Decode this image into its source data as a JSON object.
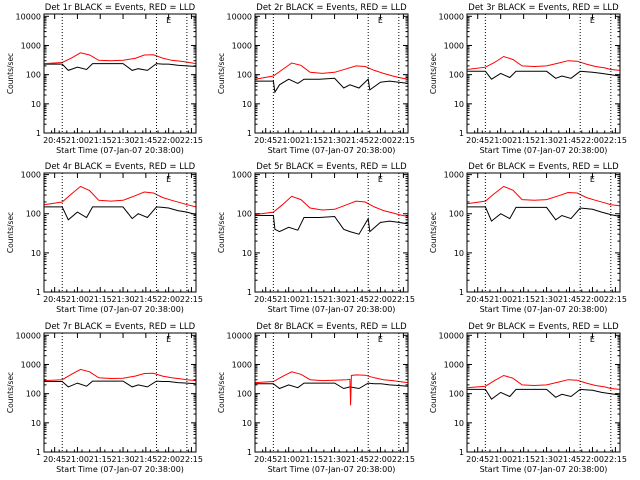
{
  "figure": {
    "background": "#ffffff",
    "series_colors": {
      "Events": "#000000",
      "LLD": "#ff0000"
    },
    "ylabel": "Counts/sec",
    "xlabel": "Start Time (07-Jan-07 20:38:00)",
    "marker_glyph": "E",
    "x_tick_labels": [
      "20:45",
      "21:00",
      "21:15",
      "21:30",
      "21:45",
      "22:00",
      "22:15"
    ],
    "y_tick_labels": [
      "1",
      "10",
      "100",
      "1000",
      "10000"
    ],
    "row_ylim": [
      [
        1,
        12000
      ],
      [
        1,
        1100
      ],
      [
        1,
        12000
      ]
    ]
  },
  "chart_data": [
    {
      "type": "line",
      "title": "Det 1r BLACK = Events, RED = LLD",
      "xlabel": "Start Time (07-Jan-07 20:38:00)",
      "ylabel": "Counts/sec",
      "xlim": [
        "20:38",
        "22:18"
      ],
      "ylim": [
        1,
        12000
      ],
      "yscale": "log",
      "grid": false,
      "vlines": [
        "20:50",
        "21:52",
        "22:12"
      ],
      "series": [
        {
          "name": "Events",
          "x": [
            "20:38",
            "20:50",
            "20:54",
            "21:00",
            "21:06",
            "21:10",
            "21:20",
            "21:30",
            "21:36",
            "21:40",
            "21:46",
            "21:52",
            "21:56",
            "22:00",
            "22:06",
            "22:12",
            "22:18"
          ],
          "values": [
            230,
            230,
            140,
            180,
            150,
            240,
            240,
            240,
            140,
            160,
            140,
            240,
            230,
            230,
            210,
            200,
            190
          ]
        },
        {
          "name": "LLD",
          "x": [
            "20:38",
            "20:50",
            "20:56",
            "21:02",
            "21:08",
            "21:14",
            "21:22",
            "21:30",
            "21:38",
            "21:44",
            "21:50",
            "21:56",
            "22:02",
            "22:08",
            "22:12",
            "22:18"
          ],
          "values": [
            240,
            260,
            370,
            560,
            470,
            310,
            300,
            310,
            360,
            470,
            480,
            370,
            310,
            290,
            270,
            240
          ]
        }
      ]
    },
    {
      "type": "line",
      "title": "Det 2r BLACK = Events, RED = LLD",
      "xlabel": "Start Time (07-Jan-07 20:38:00)",
      "ylabel": "Counts/sec",
      "xlim": [
        "20:38",
        "22:18"
      ],
      "ylim": [
        1,
        12000
      ],
      "yscale": "log",
      "grid": false,
      "vlines": [
        "20:50",
        "21:52",
        "22:12"
      ],
      "series": [
        {
          "name": "Events",
          "x": [
            "20:38",
            "20:50",
            "20:51",
            "20:54",
            "21:00",
            "21:06",
            "21:10",
            "21:20",
            "21:30",
            "21:36",
            "21:40",
            "21:46",
            "21:52",
            "21:53",
            "22:00",
            "22:06",
            "22:12",
            "22:18"
          ],
          "values": [
            60,
            60,
            25,
            45,
            70,
            50,
            70,
            70,
            75,
            35,
            45,
            35,
            70,
            30,
            55,
            60,
            55,
            50
          ]
        },
        {
          "name": "LLD",
          "x": [
            "20:38",
            "20:50",
            "20:56",
            "21:02",
            "21:08",
            "21:14",
            "21:22",
            "21:30",
            "21:38",
            "21:44",
            "21:50",
            "21:56",
            "22:02",
            "22:08",
            "22:12",
            "22:18"
          ],
          "values": [
            70,
            90,
            150,
            250,
            210,
            120,
            110,
            120,
            160,
            200,
            190,
            140,
            110,
            90,
            80,
            70
          ]
        }
      ]
    },
    {
      "type": "line",
      "title": "Det 3r BLACK = Events, RED = LLD",
      "xlabel": "Start Time (07-Jan-07 20:38:00)",
      "ylabel": "Counts/sec",
      "xlim": [
        "20:38",
        "22:18"
      ],
      "ylim": [
        1,
        12000
      ],
      "yscale": "log",
      "grid": false,
      "vlines": [
        "20:50",
        "21:52",
        "22:12"
      ],
      "series": [
        {
          "name": "Events",
          "x": [
            "20:38",
            "20:50",
            "20:54",
            "21:00",
            "21:06",
            "21:10",
            "21:20",
            "21:30",
            "21:36",
            "21:40",
            "21:46",
            "21:52",
            "21:56",
            "22:00",
            "22:06",
            "22:12",
            "22:18"
          ],
          "values": [
            130,
            130,
            70,
            110,
            80,
            130,
            130,
            130,
            75,
            90,
            75,
            130,
            125,
            120,
            110,
            100,
            90
          ]
        },
        {
          "name": "LLD",
          "x": [
            "20:38",
            "20:50",
            "20:56",
            "21:02",
            "21:08",
            "21:14",
            "21:22",
            "21:30",
            "21:38",
            "21:44",
            "21:50",
            "21:56",
            "22:02",
            "22:08",
            "22:12",
            "22:18"
          ],
          "values": [
            150,
            180,
            260,
            420,
            330,
            200,
            190,
            200,
            250,
            300,
            290,
            230,
            190,
            170,
            150,
            140
          ]
        }
      ]
    },
    {
      "type": "line",
      "title": "Det 4r BLACK = Events, RED = LLD",
      "xlabel": "Start Time (07-Jan-07 20:38:00)",
      "ylabel": "Counts/sec",
      "xlim": [
        "20:38",
        "22:18"
      ],
      "ylim": [
        1,
        1100
      ],
      "yscale": "log",
      "grid": false,
      "vlines": [
        "20:50",
        "21:52",
        "22:12"
      ],
      "series": [
        {
          "name": "Events",
          "x": [
            "20:38",
            "20:50",
            "20:54",
            "21:00",
            "21:06",
            "21:10",
            "21:20",
            "21:30",
            "21:36",
            "21:40",
            "21:46",
            "21:52",
            "21:56",
            "22:00",
            "22:06",
            "22:12",
            "22:18"
          ],
          "values": [
            150,
            150,
            70,
            110,
            80,
            150,
            150,
            150,
            75,
            100,
            80,
            150,
            145,
            140,
            120,
            110,
            95
          ]
        },
        {
          "name": "LLD",
          "x": [
            "20:38",
            "20:50",
            "20:56",
            "21:02",
            "21:08",
            "21:14",
            "21:22",
            "21:30",
            "21:38",
            "21:44",
            "21:50",
            "21:56",
            "22:02",
            "22:08",
            "22:12",
            "22:18"
          ],
          "values": [
            170,
            200,
            320,
            500,
            390,
            220,
            210,
            220,
            290,
            360,
            340,
            260,
            220,
            190,
            170,
            150
          ]
        }
      ]
    },
    {
      "type": "line",
      "title": "Det 5r BLACK = Events, RED = LLD",
      "xlabel": "Start Time (07-Jan-07 20:38:00)",
      "ylabel": "Counts/sec",
      "xlim": [
        "20:38",
        "22:18"
      ],
      "ylim": [
        1,
        1100
      ],
      "yscale": "log",
      "grid": false,
      "vlines": [
        "20:50",
        "21:52",
        "22:12"
      ],
      "series": [
        {
          "name": "Events",
          "x": [
            "20:38",
            "20:50",
            "20:51",
            "20:54",
            "21:00",
            "21:06",
            "21:10",
            "21:20",
            "21:30",
            "21:36",
            "21:40",
            "21:46",
            "21:52",
            "21:53",
            "22:00",
            "22:06",
            "22:12",
            "22:18"
          ],
          "values": [
            90,
            90,
            40,
            35,
            45,
            38,
            80,
            80,
            85,
            40,
            35,
            30,
            75,
            35,
            60,
            65,
            60,
            55
          ]
        },
        {
          "name": "LLD",
          "x": [
            "20:38",
            "20:50",
            "20:56",
            "21:02",
            "21:08",
            "21:14",
            "21:22",
            "21:30",
            "21:38",
            "21:44",
            "21:50",
            "21:56",
            "22:02",
            "22:08",
            "22:12",
            "22:18"
          ],
          "values": [
            95,
            110,
            170,
            280,
            230,
            140,
            125,
            130,
            170,
            210,
            200,
            150,
            120,
            105,
            95,
            85
          ]
        }
      ]
    },
    {
      "type": "line",
      "title": "Det 6r BLACK = Events, RED = LLD",
      "xlabel": "Start Time (07-Jan-07 20:38:00)",
      "ylabel": "Counts/sec",
      "xlim": [
        "20:38",
        "22:18"
      ],
      "ylim": [
        1,
        1100
      ],
      "yscale": "log",
      "grid": false,
      "vlines": [
        "20:50",
        "21:52",
        "22:12"
      ],
      "series": [
        {
          "name": "Events",
          "x": [
            "20:38",
            "20:50",
            "20:54",
            "21:00",
            "21:06",
            "21:10",
            "21:20",
            "21:30",
            "21:36",
            "21:40",
            "21:46",
            "21:52",
            "21:56",
            "22:00",
            "22:06",
            "22:12",
            "22:18"
          ],
          "values": [
            150,
            150,
            65,
            100,
            75,
            145,
            145,
            145,
            70,
            90,
            75,
            140,
            135,
            130,
            110,
            95,
            85
          ]
        },
        {
          "name": "LLD",
          "x": [
            "20:38",
            "20:50",
            "20:56",
            "21:02",
            "21:08",
            "21:14",
            "21:22",
            "21:30",
            "21:38",
            "21:44",
            "21:50",
            "21:56",
            "22:02",
            "22:08",
            "22:12",
            "22:18"
          ],
          "values": [
            180,
            210,
            330,
            500,
            400,
            230,
            220,
            230,
            290,
            350,
            340,
            260,
            220,
            190,
            170,
            160
          ]
        }
      ]
    },
    {
      "type": "line",
      "title": "Det 7r BLACK = Events, RED = LLD",
      "xlabel": "Start Time (07-Jan-07 20:38:00)",
      "ylabel": "Counts/sec",
      "xlim": [
        "20:38",
        "22:18"
      ],
      "ylim": [
        1,
        12000
      ],
      "yscale": "log",
      "grid": false,
      "vlines": [
        "20:50",
        "21:52",
        "22:12"
      ],
      "series": [
        {
          "name": "Events",
          "x": [
            "20:38",
            "20:50",
            "20:54",
            "21:00",
            "21:06",
            "21:10",
            "21:20",
            "21:30",
            "21:36",
            "21:40",
            "21:46",
            "21:52",
            "21:56",
            "22:00",
            "22:06",
            "22:12",
            "22:18"
          ],
          "values": [
            260,
            260,
            170,
            230,
            180,
            270,
            270,
            270,
            170,
            200,
            170,
            270,
            260,
            260,
            240,
            230,
            220
          ]
        },
        {
          "name": "LLD",
          "x": [
            "20:38",
            "20:50",
            "20:56",
            "21:02",
            "21:08",
            "21:14",
            "21:22",
            "21:30",
            "21:38",
            "21:44",
            "21:50",
            "21:56",
            "22:02",
            "22:08",
            "22:12",
            "22:18"
          ],
          "values": [
            280,
            300,
            460,
            680,
            560,
            350,
            330,
            340,
            400,
            490,
            500,
            400,
            350,
            320,
            300,
            280
          ]
        }
      ]
    },
    {
      "type": "line",
      "title": "Det 8r BLACK = Events, RED = LLD",
      "xlabel": "Start Time (07-Jan-07 20:38:00)",
      "ylabel": "Counts/sec",
      "xlim": [
        "20:38",
        "22:18"
      ],
      "ylim": [
        1,
        12000
      ],
      "yscale": "log",
      "grid": false,
      "vlines": [
        "20:50",
        "21:52",
        "22:12"
      ],
      "series": [
        {
          "name": "Events",
          "x": [
            "20:38",
            "20:50",
            "20:54",
            "21:00",
            "21:06",
            "21:10",
            "21:20",
            "21:30",
            "21:36",
            "21:40",
            "21:46",
            "21:52",
            "21:56",
            "22:00",
            "22:06",
            "22:12",
            "22:18"
          ],
          "values": [
            220,
            220,
            150,
            200,
            160,
            230,
            230,
            230,
            150,
            170,
            150,
            230,
            220,
            220,
            200,
            190,
            180
          ]
        },
        {
          "name": "LLD",
          "x": [
            "20:38",
            "20:50",
            "20:56",
            "21:02",
            "21:08",
            "21:14",
            "21:22",
            "21:30",
            "21:38",
            "21:40",
            "21:40.5",
            "21:41",
            "21:44",
            "21:50",
            "21:56",
            "22:02",
            "22:08",
            "22:12",
            "22:18"
          ],
          "values": [
            240,
            260,
            390,
            560,
            460,
            300,
            280,
            290,
            300,
            310,
            40,
            420,
            440,
            430,
            350,
            300,
            280,
            260,
            240
          ]
        }
      ]
    },
    {
      "type": "line",
      "title": "Det 9r BLACK = Events, RED = LLD",
      "xlabel": "Start Time (07-Jan-07 20:38:00)",
      "ylabel": "Counts/sec",
      "xlim": [
        "20:38",
        "22:18"
      ],
      "ylim": [
        1,
        12000
      ],
      "yscale": "log",
      "grid": false,
      "vlines": [
        "20:50",
        "21:52",
        "22:12"
      ],
      "series": [
        {
          "name": "Events",
          "x": [
            "20:38",
            "20:50",
            "20:54",
            "21:00",
            "21:06",
            "21:10",
            "21:20",
            "21:30",
            "21:36",
            "21:40",
            "21:46",
            "21:52",
            "21:56",
            "22:00",
            "22:06",
            "22:12",
            "22:18"
          ],
          "values": [
            140,
            140,
            65,
            110,
            80,
            140,
            140,
            140,
            75,
            95,
            80,
            140,
            135,
            130,
            110,
            100,
            90
          ]
        },
        {
          "name": "LLD",
          "x": [
            "20:38",
            "20:50",
            "20:56",
            "21:02",
            "21:08",
            "21:14",
            "21:22",
            "21:30",
            "21:38",
            "21:44",
            "21:50",
            "21:56",
            "22:02",
            "22:08",
            "22:12",
            "22:18"
          ],
          "values": [
            160,
            180,
            280,
            420,
            340,
            200,
            190,
            200,
            250,
            300,
            290,
            230,
            190,
            170,
            150,
            140
          ]
        }
      ]
    }
  ]
}
